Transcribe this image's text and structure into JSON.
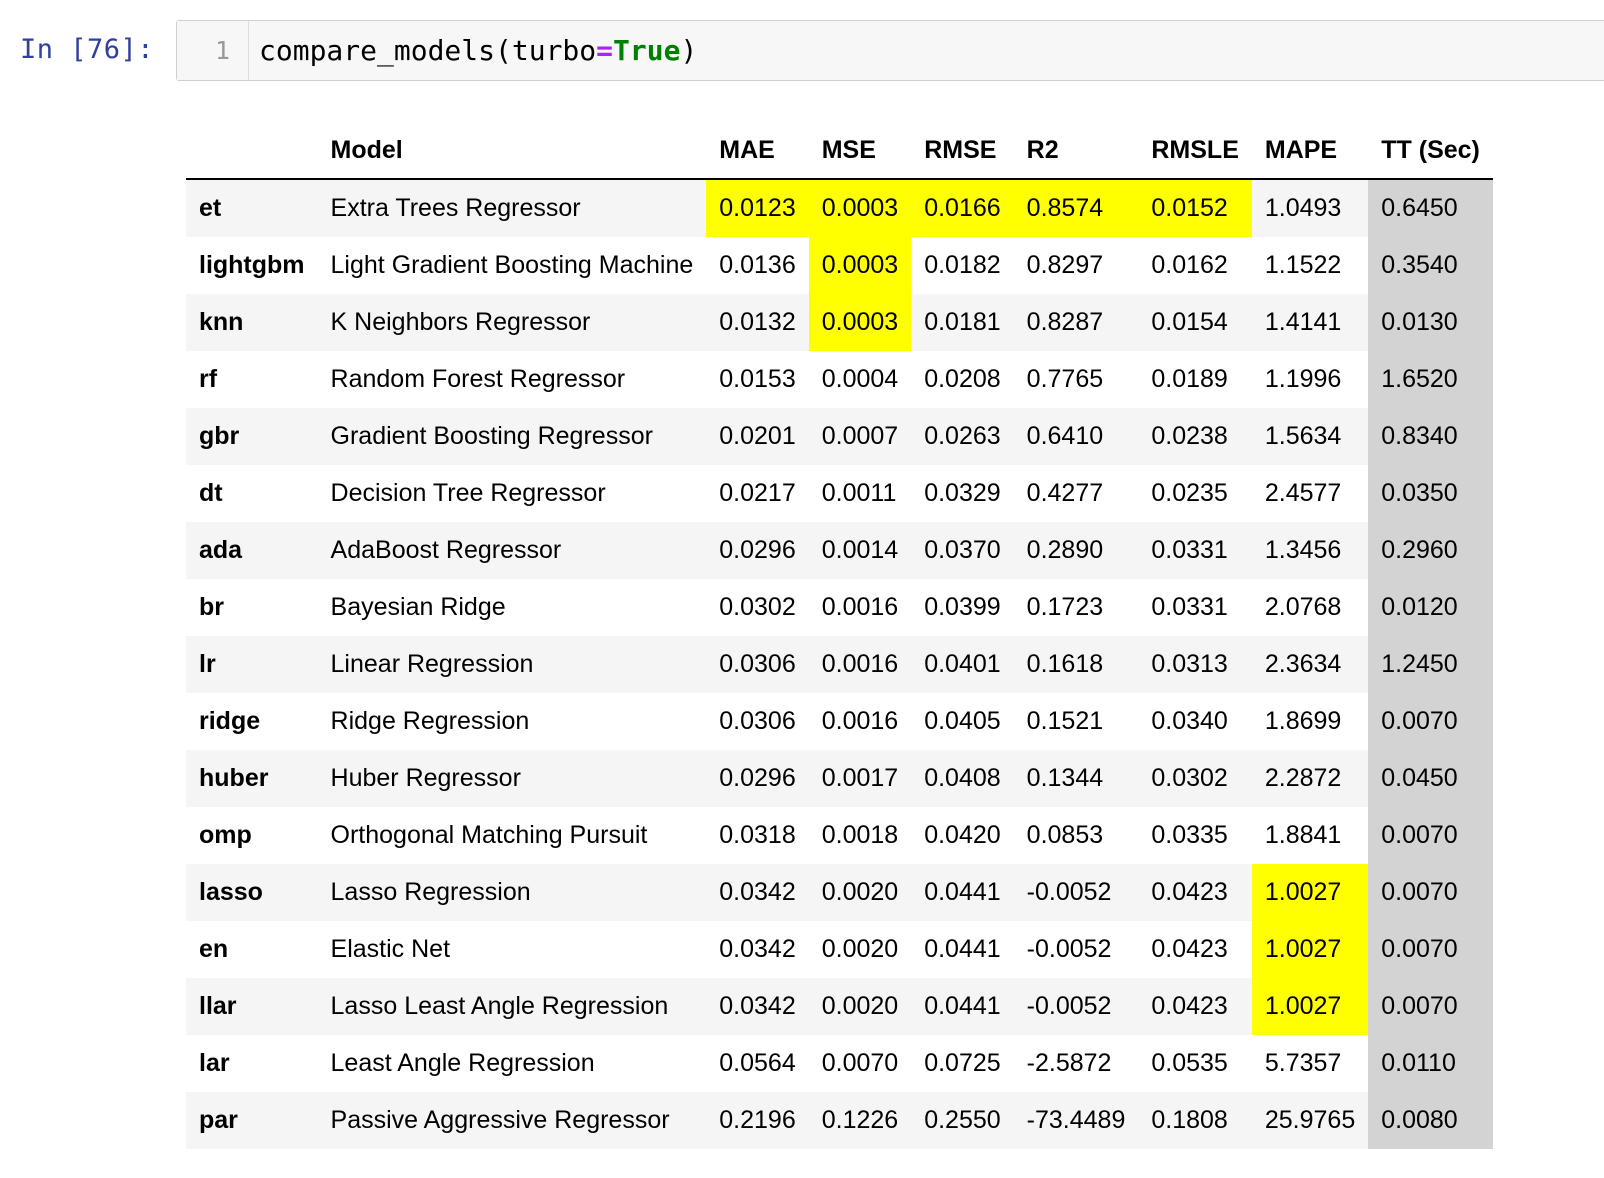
{
  "cell": {
    "prompt": "In [76]:",
    "line_number": "1",
    "code": {
      "func": "compare_models(turbo",
      "op": "=",
      "kw": "True",
      "close": ")"
    }
  },
  "table": {
    "columns": [
      "",
      "Model",
      "MAE",
      "MSE",
      "RMSE",
      "R2",
      "RMSLE",
      "MAPE",
      "TT (Sec)"
    ],
    "highlight_color": "#ffff00",
    "tt_column_color": "#d3d3d3",
    "rows": [
      {
        "id": "et",
        "model": "Extra Trees Regressor",
        "mae": "0.0123",
        "mse": "0.0003",
        "rmse": "0.0166",
        "r2": "0.8574",
        "rmsle": "0.0152",
        "mape": "1.0493",
        "tt": "0.6450",
        "highlight": [
          "mae",
          "mse",
          "rmse",
          "r2",
          "rmsle"
        ]
      },
      {
        "id": "lightgbm",
        "model": "Light Gradient Boosting Machine",
        "mae": "0.0136",
        "mse": "0.0003",
        "rmse": "0.0182",
        "r2": "0.8297",
        "rmsle": "0.0162",
        "mape": "1.1522",
        "tt": "0.3540",
        "highlight": [
          "mse"
        ]
      },
      {
        "id": "knn",
        "model": "K Neighbors Regressor",
        "mae": "0.0132",
        "mse": "0.0003",
        "rmse": "0.0181",
        "r2": "0.8287",
        "rmsle": "0.0154",
        "mape": "1.4141",
        "tt": "0.0130",
        "highlight": [
          "mse"
        ]
      },
      {
        "id": "rf",
        "model": "Random Forest Regressor",
        "mae": "0.0153",
        "mse": "0.0004",
        "rmse": "0.0208",
        "r2": "0.7765",
        "rmsle": "0.0189",
        "mape": "1.1996",
        "tt": "1.6520",
        "highlight": []
      },
      {
        "id": "gbr",
        "model": "Gradient Boosting Regressor",
        "mae": "0.0201",
        "mse": "0.0007",
        "rmse": "0.0263",
        "r2": "0.6410",
        "rmsle": "0.0238",
        "mape": "1.5634",
        "tt": "0.8340",
        "highlight": []
      },
      {
        "id": "dt",
        "model": "Decision Tree Regressor",
        "mae": "0.0217",
        "mse": "0.0011",
        "rmse": "0.0329",
        "r2": "0.4277",
        "rmsle": "0.0235",
        "mape": "2.4577",
        "tt": "0.0350",
        "highlight": []
      },
      {
        "id": "ada",
        "model": "AdaBoost Regressor",
        "mae": "0.0296",
        "mse": "0.0014",
        "rmse": "0.0370",
        "r2": "0.2890",
        "rmsle": "0.0331",
        "mape": "1.3456",
        "tt": "0.2960",
        "highlight": []
      },
      {
        "id": "br",
        "model": "Bayesian Ridge",
        "mae": "0.0302",
        "mse": "0.0016",
        "rmse": "0.0399",
        "r2": "0.1723",
        "rmsle": "0.0331",
        "mape": "2.0768",
        "tt": "0.0120",
        "highlight": []
      },
      {
        "id": "lr",
        "model": "Linear Regression",
        "mae": "0.0306",
        "mse": "0.0016",
        "rmse": "0.0401",
        "r2": "0.1618",
        "rmsle": "0.0313",
        "mape": "2.3634",
        "tt": "1.2450",
        "highlight": []
      },
      {
        "id": "ridge",
        "model": "Ridge Regression",
        "mae": "0.0306",
        "mse": "0.0016",
        "rmse": "0.0405",
        "r2": "0.1521",
        "rmsle": "0.0340",
        "mape": "1.8699",
        "tt": "0.0070",
        "highlight": []
      },
      {
        "id": "huber",
        "model": "Huber Regressor",
        "mae": "0.0296",
        "mse": "0.0017",
        "rmse": "0.0408",
        "r2": "0.1344",
        "rmsle": "0.0302",
        "mape": "2.2872",
        "tt": "0.0450",
        "highlight": []
      },
      {
        "id": "omp",
        "model": "Orthogonal Matching Pursuit",
        "mae": "0.0318",
        "mse": "0.0018",
        "rmse": "0.0420",
        "r2": "0.0853",
        "rmsle": "0.0335",
        "mape": "1.8841",
        "tt": "0.0070",
        "highlight": []
      },
      {
        "id": "lasso",
        "model": "Lasso Regression",
        "mae": "0.0342",
        "mse": "0.0020",
        "rmse": "0.0441",
        "r2": "-0.0052",
        "rmsle": "0.0423",
        "mape": "1.0027",
        "tt": "0.0070",
        "highlight": [
          "mape"
        ]
      },
      {
        "id": "en",
        "model": "Elastic Net",
        "mae": "0.0342",
        "mse": "0.0020",
        "rmse": "0.0441",
        "r2": "-0.0052",
        "rmsle": "0.0423",
        "mape": "1.0027",
        "tt": "0.0070",
        "highlight": [
          "mape"
        ]
      },
      {
        "id": "llar",
        "model": "Lasso Least Angle Regression",
        "mae": "0.0342",
        "mse": "0.0020",
        "rmse": "0.0441",
        "r2": "-0.0052",
        "rmsle": "0.0423",
        "mape": "1.0027",
        "tt": "0.0070",
        "highlight": [
          "mape"
        ]
      },
      {
        "id": "lar",
        "model": "Least Angle Regression",
        "mae": "0.0564",
        "mse": "0.0070",
        "rmse": "0.0725",
        "r2": "-2.5872",
        "rmsle": "0.0535",
        "mape": "5.7357",
        "tt": "0.0110",
        "highlight": []
      },
      {
        "id": "par",
        "model": "Passive Aggressive Regressor",
        "mae": "0.2196",
        "mse": "0.1226",
        "rmse": "0.2550",
        "r2": "-73.4489",
        "rmsle": "0.1808",
        "mape": "25.9765",
        "tt": "0.0080",
        "highlight": []
      }
    ]
  }
}
